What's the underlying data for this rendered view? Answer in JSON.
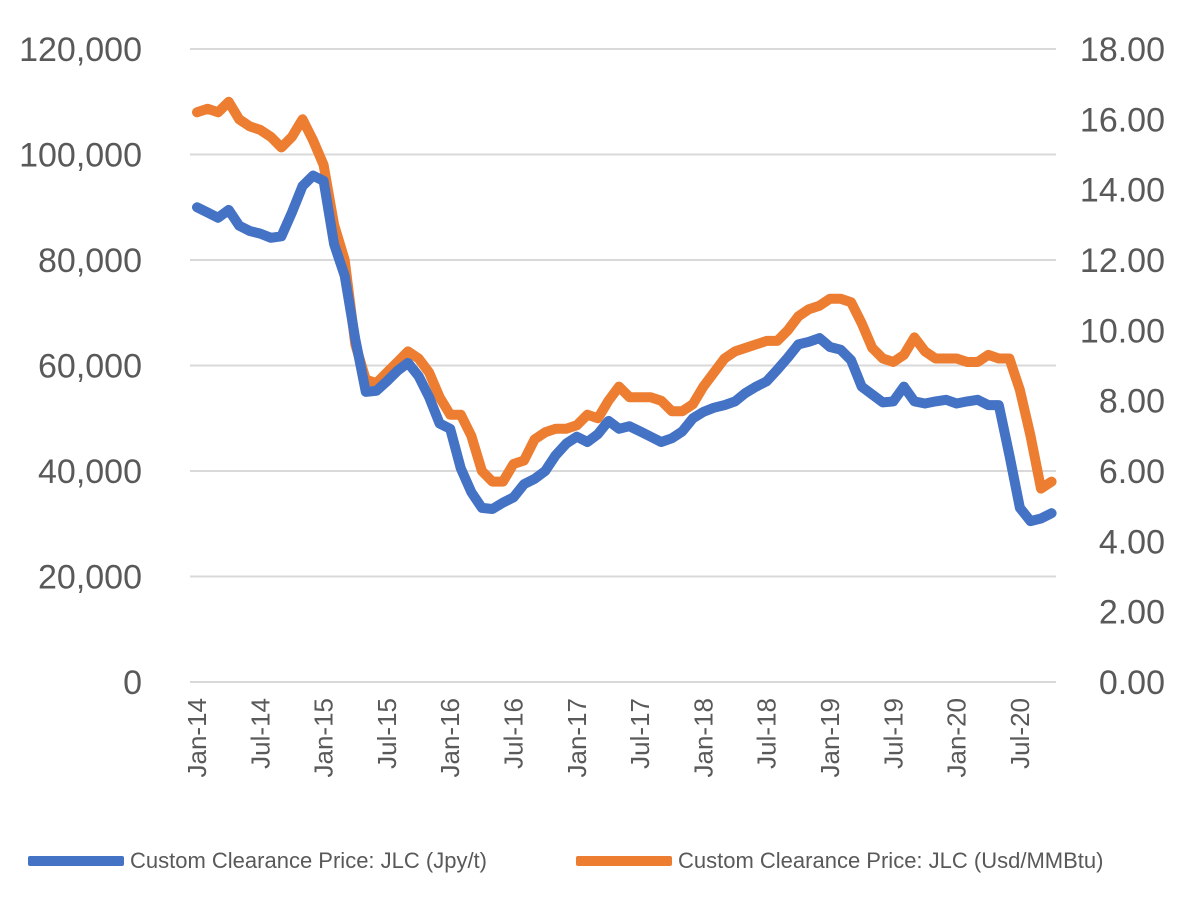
{
  "chart_data": {
    "type": "line",
    "x_tick_labels": [
      "Jan-14",
      "Jul-14",
      "Jan-15",
      "Jul-15",
      "Jan-16",
      "Jul-16",
      "Jan-17",
      "Jul-17",
      "Jan-18",
      "Jul-18",
      "Jan-19",
      "Jul-19",
      "Jan-20",
      "Jul-20"
    ],
    "x": [
      "Jan-14",
      "Feb-14",
      "Mar-14",
      "Apr-14",
      "May-14",
      "Jun-14",
      "Jul-14",
      "Aug-14",
      "Sep-14",
      "Oct-14",
      "Nov-14",
      "Dec-14",
      "Jan-15",
      "Feb-15",
      "Mar-15",
      "Apr-15",
      "May-15",
      "Jun-15",
      "Jul-15",
      "Aug-15",
      "Sep-15",
      "Oct-15",
      "Nov-15",
      "Dec-15",
      "Jan-16",
      "Feb-16",
      "Mar-16",
      "Apr-16",
      "May-16",
      "Jun-16",
      "Jul-16",
      "Aug-16",
      "Sep-16",
      "Oct-16",
      "Nov-16",
      "Dec-16",
      "Jan-17",
      "Feb-17",
      "Mar-17",
      "Apr-17",
      "May-17",
      "Jun-17",
      "Jul-17",
      "Aug-17",
      "Sep-17",
      "Oct-17",
      "Nov-17",
      "Dec-17",
      "Jan-18",
      "Feb-18",
      "Mar-18",
      "Apr-18",
      "May-18",
      "Jun-18",
      "Jul-18",
      "Aug-18",
      "Sep-18",
      "Oct-18",
      "Nov-18",
      "Dec-18",
      "Jan-19",
      "Feb-19",
      "Mar-19",
      "Apr-19",
      "May-19",
      "Jun-19",
      "Jul-19",
      "Aug-19",
      "Sep-19",
      "Oct-19",
      "Nov-19",
      "Dec-19",
      "Jan-20",
      "Feb-20",
      "Mar-20",
      "Apr-20",
      "May-20",
      "Jun-20",
      "Jul-20",
      "Aug-20",
      "Sep-20",
      "Oct-20"
    ],
    "y_left_ticks": [
      "0",
      "20,000",
      "40,000",
      "60,000",
      "80,000",
      "100,000",
      "120,000"
    ],
    "y_right_ticks": [
      "0.00",
      "2.00",
      "4.00",
      "6.00",
      "8.00",
      "10.00",
      "12.00",
      "14.00",
      "16.00",
      "18.00"
    ],
    "ylim_left": [
      0,
      120000
    ],
    "ylim_right": [
      0,
      18
    ],
    "grid": true,
    "legend_position": "bottom",
    "series": [
      {
        "name": "Custom Clearance Price: JLC (Jpy/t)",
        "axis": "left",
        "color": "#4472C4",
        "values": [
          90000,
          89000,
          88000,
          89500,
          86500,
          85500,
          85000,
          84200,
          84500,
          89000,
          94000,
          96000,
          95000,
          83000,
          77000,
          65000,
          55000,
          55200,
          57000,
          59000,
          60500,
          58000,
          54000,
          49000,
          48000,
          40500,
          36000,
          33000,
          32800,
          34000,
          35000,
          37500,
          38500,
          40000,
          43000,
          45200,
          46500,
          45500,
          47000,
          49500,
          48000,
          48500,
          47500,
          46500,
          45500,
          46200,
          47500,
          50000,
          51200,
          52000,
          52500,
          53200,
          54800,
          56000,
          57000,
          59200,
          61500,
          64000,
          64500,
          65200,
          63500,
          63000,
          61000,
          56000,
          54500,
          53000,
          53200,
          56000,
          53200,
          52800,
          53200,
          53500,
          52800,
          53200,
          53500,
          52500,
          52500,
          43000,
          33000,
          30500,
          31000,
          32000
        ]
      },
      {
        "name": "Custom Clearance Price: JLC (Usd/MMBtu)",
        "axis": "right",
        "color": "#ED7D31",
        "values": [
          16.2,
          16.3,
          16.2,
          16.5,
          16.0,
          15.8,
          15.7,
          15.5,
          15.2,
          15.5,
          16.0,
          15.4,
          14.7,
          13.0,
          12.0,
          9.6,
          8.6,
          8.5,
          8.8,
          9.1,
          9.4,
          9.2,
          8.8,
          8.1,
          7.6,
          7.6,
          7.0,
          6.0,
          5.7,
          5.7,
          6.2,
          6.3,
          6.9,
          7.1,
          7.2,
          7.2,
          7.3,
          7.6,
          7.5,
          8.0,
          8.4,
          8.1,
          8.1,
          8.1,
          8.0,
          7.7,
          7.7,
          7.9,
          8.4,
          8.8,
          9.2,
          9.4,
          9.5,
          9.6,
          9.7,
          9.7,
          10.0,
          10.4,
          10.6,
          10.7,
          10.9,
          10.9,
          10.8,
          10.2,
          9.5,
          9.2,
          9.1,
          9.3,
          9.8,
          9.4,
          9.2,
          9.2,
          9.2,
          9.1,
          9.1,
          9.3,
          9.2,
          9.2,
          8.3,
          7.0,
          5.5,
          5.7
        ]
      }
    ]
  }
}
